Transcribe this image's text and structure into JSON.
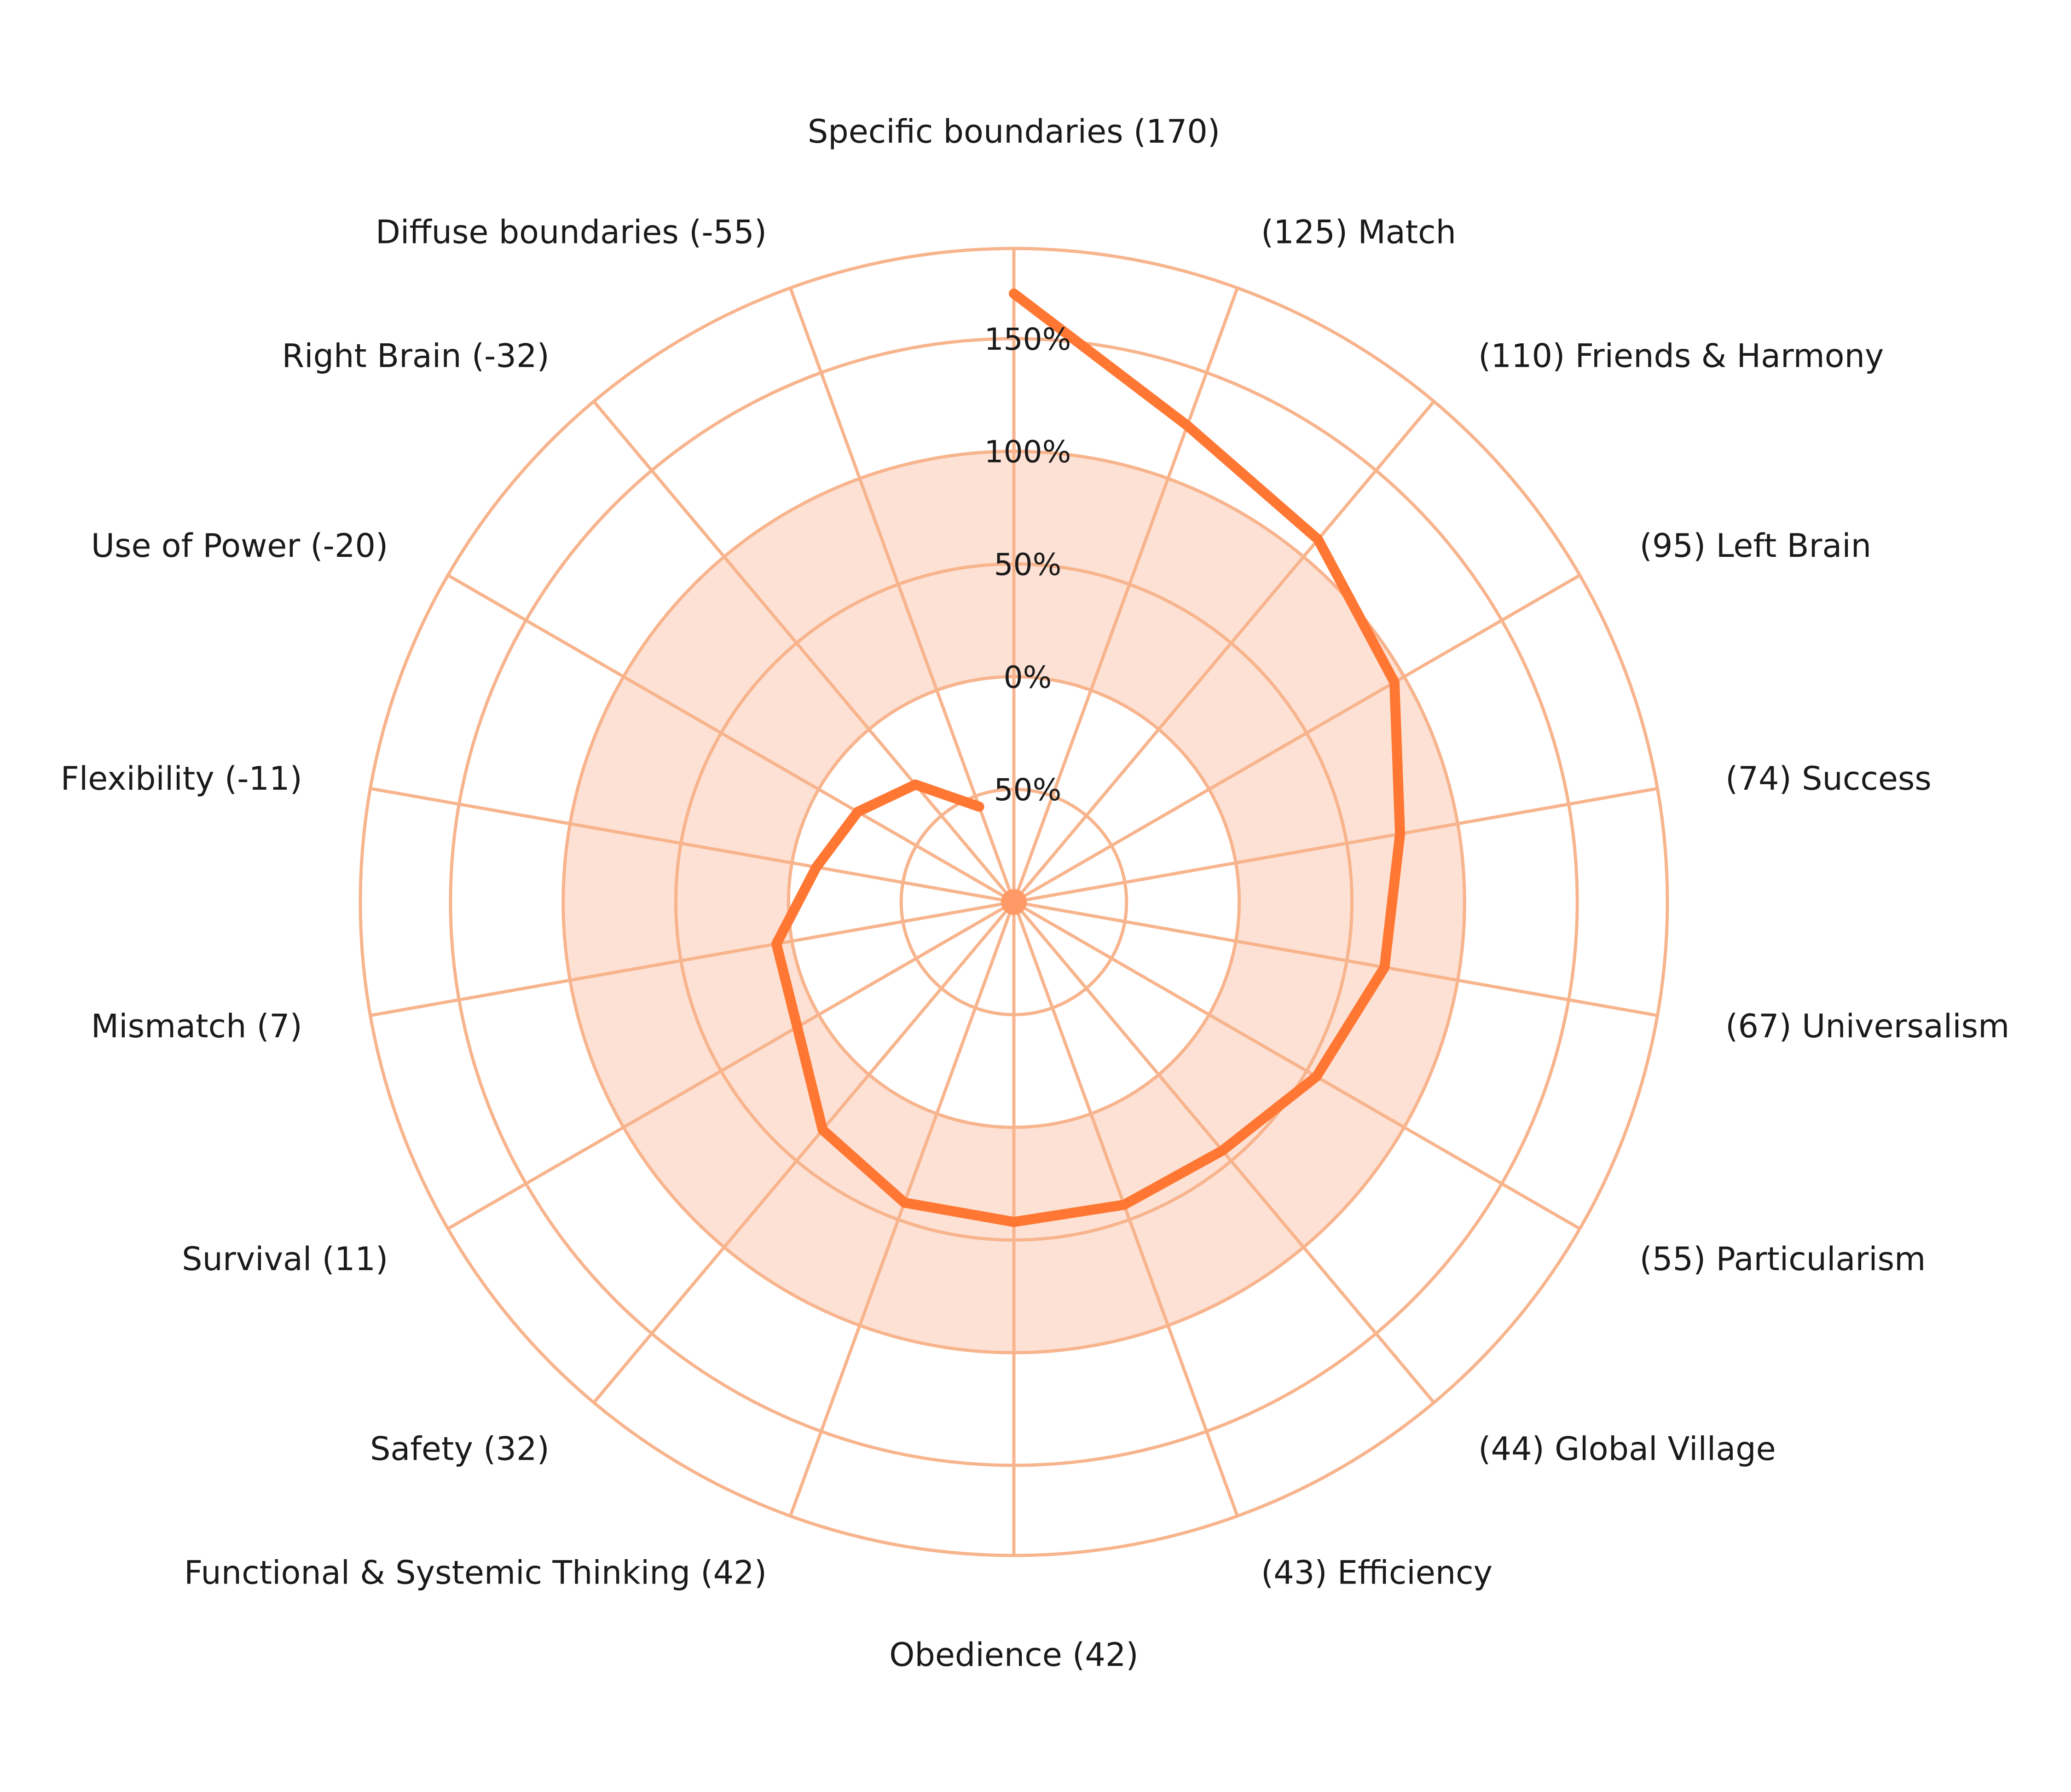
{
  "chart_data": {
    "type": "radar",
    "categories": [
      "Specific boundaries (170)",
      "(125) Match",
      "(110) Friends & Harmony",
      "(95) Left Brain",
      "(74) Success",
      "(67) Universalism",
      "(55) Particularism",
      "(44) Global Village",
      "(43) Efficiency",
      "Obedience (42)",
      "Functional & Systemic Thinking (42)",
      "Safety (32)",
      "Survival (11)",
      "Mismatch (7)",
      "Flexibility (-11)",
      "Use of Power (-20)",
      "Right Brain (-32)",
      "Diffuse boundaries (-55)"
    ],
    "series": [
      {
        "values": [
          170,
          125,
          110,
          95,
          74,
          67,
          55,
          44,
          43,
          42,
          42,
          32,
          11,
          7,
          -11,
          -20,
          -32,
          -55
        ]
      }
    ],
    "rlim": [
      -100,
      190
    ],
    "ticks": [
      -50,
      0,
      50,
      100,
      150
    ],
    "tick_labels": [
      "50%",
      "0%",
      "50%",
      "100%",
      "150%"
    ],
    "band": [
      0,
      100
    ],
    "grid": true,
    "colors": {
      "line": "#ff7733",
      "grid": "#f7b48d",
      "band": "#fde1d4",
      "center": "#ff9966"
    }
  }
}
